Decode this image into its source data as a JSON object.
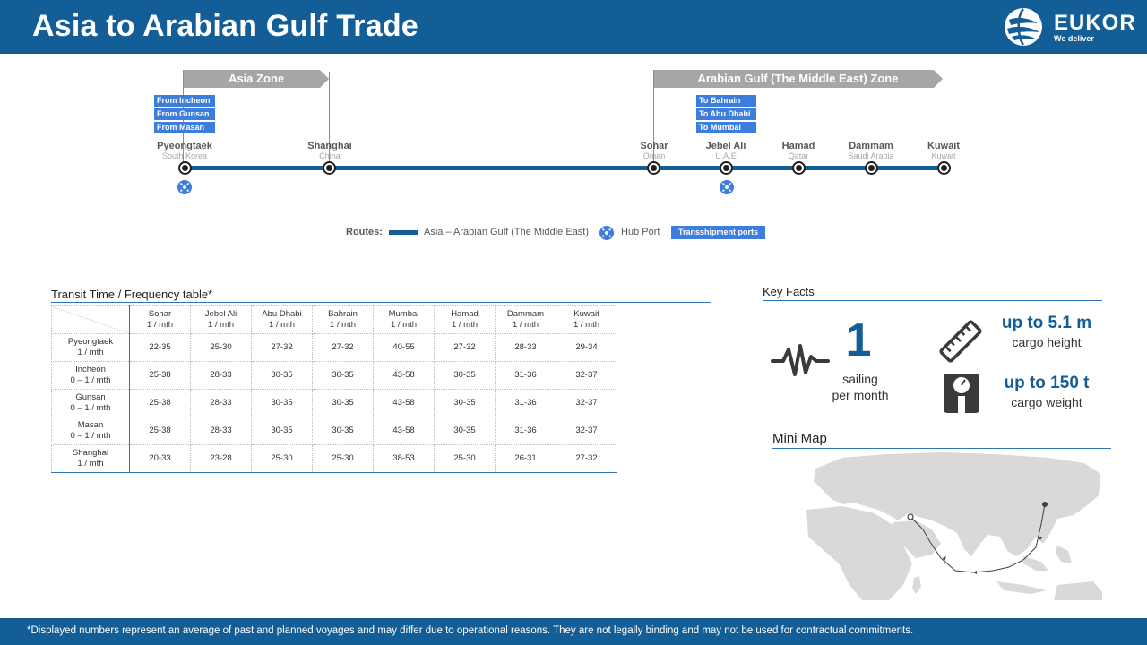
{
  "header": {
    "title": "Asia to Arabian Gulf Trade",
    "logo_name": "EUKOR",
    "logo_tagline": "We deliver"
  },
  "route_map": {
    "zones": [
      {
        "label": "Asia Zone"
      },
      {
        "label": "Arabian Gulf (The Middle East) Zone"
      }
    ],
    "from_tags": [
      "From Incheon",
      "From Gunsan",
      "From Masan"
    ],
    "to_tags": [
      "To Bahrain",
      "To Abu Dhabi",
      "To Mumbai"
    ],
    "ports": [
      {
        "name": "Pyeongtaek",
        "country": "South Korea"
      },
      {
        "name": "Shanghai",
        "country": "China"
      },
      {
        "name": "Sohar",
        "country": "Oman"
      },
      {
        "name": "Jebel Ali",
        "country": "U.A.E"
      },
      {
        "name": "Hamad",
        "country": "Qatar"
      },
      {
        "name": "Dammam",
        "country": "Saudi Arabia"
      },
      {
        "name": "Kuwait",
        "country": "Kuwait"
      }
    ],
    "legend": {
      "routes_label": "Routes:",
      "route_name": "Asia – Arabian Gulf (The Middle East)",
      "hub_label": "Hub Port",
      "transshipment_label": "Transshipment ports"
    }
  },
  "transit_table": {
    "title": "Transit Time / Frequency table*",
    "columns": [
      {
        "port": "Sohar",
        "freq": "1 / mth"
      },
      {
        "port": "Jebel Ali",
        "freq": "1 / mth"
      },
      {
        "port": "Abu Dhabi",
        "freq": "1 / mth"
      },
      {
        "port": "Bahrain",
        "freq": "1 / mth"
      },
      {
        "port": "Mumbai",
        "freq": "1 / mth"
      },
      {
        "port": "Hamad",
        "freq": "1 / mth"
      },
      {
        "port": "Dammam",
        "freq": "1 / mth"
      },
      {
        "port": "Kuwait",
        "freq": "1 / mth"
      }
    ],
    "rows": [
      {
        "port": "Pyeongtaek",
        "freq": "1 / mth",
        "values": [
          "22-35",
          "25-30",
          "27-32",
          "27-32",
          "40-55",
          "27-32",
          "28-33",
          "29-34"
        ]
      },
      {
        "port": "Incheon",
        "freq": "0 – 1 / mth",
        "values": [
          "25-38",
          "28-33",
          "30-35",
          "30-35",
          "43-58",
          "30-35",
          "31-36",
          "32-37"
        ]
      },
      {
        "port": "Gunsan",
        "freq": "0 – 1 / mth",
        "values": [
          "25-38",
          "28-33",
          "30-35",
          "30-35",
          "43-58",
          "30-35",
          "31-36",
          "32-37"
        ]
      },
      {
        "port": "Masan",
        "freq": "0 – 1 / mth",
        "values": [
          "25-38",
          "28-33",
          "30-35",
          "30-35",
          "43-58",
          "30-35",
          "31-36",
          "32-37"
        ]
      },
      {
        "port": "Shanghai",
        "freq": "1 / mth",
        "values": [
          "20-33",
          "23-28",
          "25-30",
          "25-30",
          "38-53",
          "25-30",
          "26-31",
          "27-32"
        ]
      }
    ]
  },
  "key_facts": {
    "title": "Key Facts",
    "sailing_value": "1",
    "sailing_label_1": "sailing",
    "sailing_label_2": "per month",
    "height_value": "up to 5.1 m",
    "height_label": "cargo height",
    "weight_value": "up to 150 t",
    "weight_label": "cargo weight"
  },
  "mini_map": {
    "title": "Mini Map"
  },
  "footer": {
    "disclaimer": "*Displayed numbers represent  an average of past and planned voyages and may differ due to operational reasons. They are not legally binding and may not be used for contractual commitments."
  },
  "colors": {
    "brand_blue": "#135e96",
    "tag_blue": "#3d7ddb",
    "zone_gray": "#a6a6a6"
  }
}
